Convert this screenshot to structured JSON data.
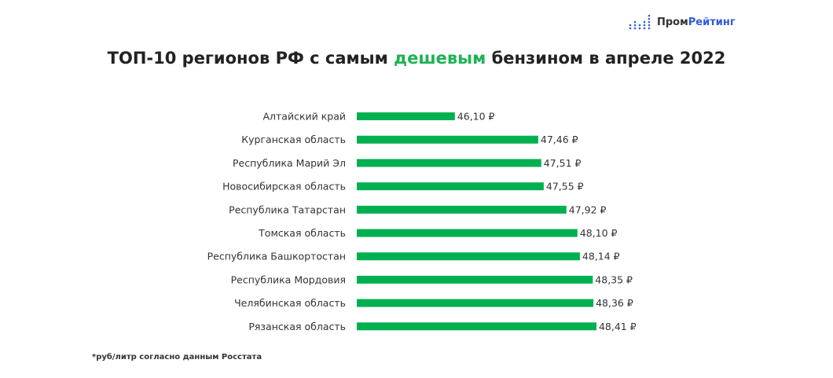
{
  "logo": {
    "text_part1": "Пром",
    "text_part2": "Рейтинг",
    "accent_color": "#2e5bd8",
    "icon": "dot-bars-logo-icon"
  },
  "title": {
    "part1": "ТОП-10 регионов РФ с самым ",
    "highlight": "дешевым",
    "part2": " бензином в апреле 2022",
    "highlight_color": "#1fb254"
  },
  "footnote": "*руб/литр согласно данным Росстата",
  "chart_data": {
    "type": "bar",
    "orientation": "horizontal",
    "title": "ТОП-10 регионов РФ с самым дешевым бензином в апреле 2022",
    "categories": [
      "Алтайский край",
      "Курганская область",
      "Республика Марий Эл",
      "Новосибирская область",
      "Республика Татарстан",
      "Томская область",
      "Республика Башкортостан",
      "Республика Мордовия",
      "Челябинская область",
      "Рязанская область"
    ],
    "values": [
      46.1,
      47.46,
      47.51,
      47.55,
      47.92,
      48.1,
      48.14,
      48.35,
      48.36,
      48.41
    ],
    "labels": [
      "46,10 ₽",
      "47,46 ₽",
      "47,51 ₽",
      "47,55 ₽",
      "47,92 ₽",
      "48,10 ₽",
      "48,14 ₽",
      "48,35 ₽",
      "48,36 ₽",
      "48,41 ₽"
    ],
    "xlim": [
      44.5,
      49
    ],
    "bar_color": "#00b050",
    "grid": false,
    "legend": "none"
  }
}
